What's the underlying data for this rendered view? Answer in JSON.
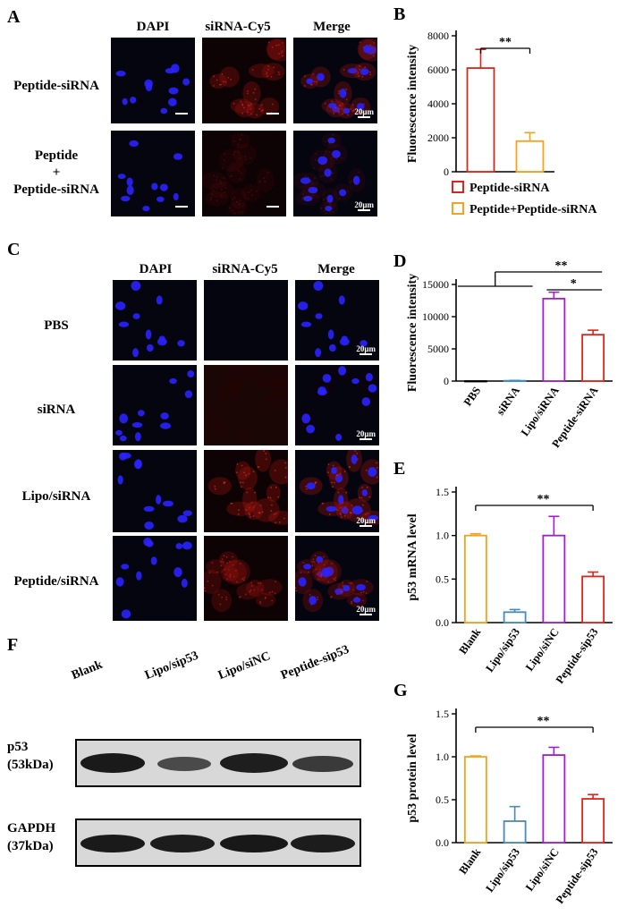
{
  "panels": {
    "A": {
      "letter": "A",
      "channels": [
        "DAPI",
        "siRNA-Cy5",
        "Merge"
      ],
      "rows": [
        "Peptide-siRNA",
        "Peptide\n+\nPeptide-siRNA"
      ],
      "scale": "20μm"
    },
    "C": {
      "letter": "C",
      "channels": [
        "DAPI",
        "siRNA-Cy5",
        "Merge"
      ],
      "rows": [
        "PBS",
        "siRNA",
        "Lipo/siRNA",
        "Peptide/siRNA"
      ],
      "scale": "20μm"
    },
    "F": {
      "letter": "F",
      "lanes": [
        "Blank",
        "Lipo/sip53",
        "Lipo/siNC",
        "Peptide-sip53"
      ],
      "bands": [
        "p53\n(53kDa)",
        "GAPDH\n(37kDa)"
      ]
    }
  },
  "colors": {
    "red": "#e2231a",
    "orange": "#f6a21b",
    "purple": "#a020c8",
    "blue": "#4a8ab8",
    "nuclei": "#2a22ff",
    "cy5": "#c81a14"
  },
  "chart_data": [
    {
      "letter": "B",
      "type": "bar",
      "ylabel": "Fluorescence intensity",
      "categories": [
        "Peptide-siRNA",
        "Peptide+Peptide-siRNA"
      ],
      "values": [
        6100,
        1800
      ],
      "errors": [
        1100,
        500
      ],
      "yticks": [
        0,
        2000,
        4000,
        6000,
        8000
      ],
      "ylim": [
        0,
        8000
      ],
      "legend": [
        "Peptide-siRNA",
        "Peptide+Peptide-siRNA"
      ],
      "sig": [
        "**"
      ]
    },
    {
      "letter": "D",
      "type": "bar",
      "ylabel": "Fluorescence intensity",
      "categories": [
        "PBS",
        "siRNA",
        "Lipo/siRNA",
        "Peptide-siRNA"
      ],
      "values": [
        0,
        50,
        12800,
        7200
      ],
      "errors": [
        0,
        50,
        1000,
        700
      ],
      "yticks": [
        0,
        5000,
        10000,
        15000
      ],
      "ylim": [
        0,
        15000
      ],
      "sig": [
        "**",
        "*"
      ]
    },
    {
      "letter": "E",
      "type": "bar",
      "ylabel": "p53 mRNA level",
      "categories": [
        "Blank",
        "Lipo/sip53",
        "Lipo/siNC",
        "Peptide-sip53"
      ],
      "values": [
        1.0,
        0.12,
        1.0,
        0.53
      ],
      "errors": [
        0.02,
        0.03,
        0.22,
        0.05
      ],
      "yticks": [
        0.0,
        0.5,
        1.0,
        1.5
      ],
      "ylim": [
        0,
        1.5
      ],
      "sig": [
        "**"
      ]
    },
    {
      "letter": "G",
      "type": "bar",
      "ylabel": "p53 protein level",
      "categories": [
        "Blank",
        "Lipo/sip53",
        "Lipo/siNC",
        "Peptide-sip53"
      ],
      "values": [
        1.0,
        0.25,
        1.02,
        0.51
      ],
      "errors": [
        0.01,
        0.17,
        0.09,
        0.05
      ],
      "yticks": [
        0.0,
        0.5,
        1.0,
        1.5
      ],
      "ylim": [
        0,
        1.5
      ],
      "sig": [
        "**"
      ]
    }
  ]
}
